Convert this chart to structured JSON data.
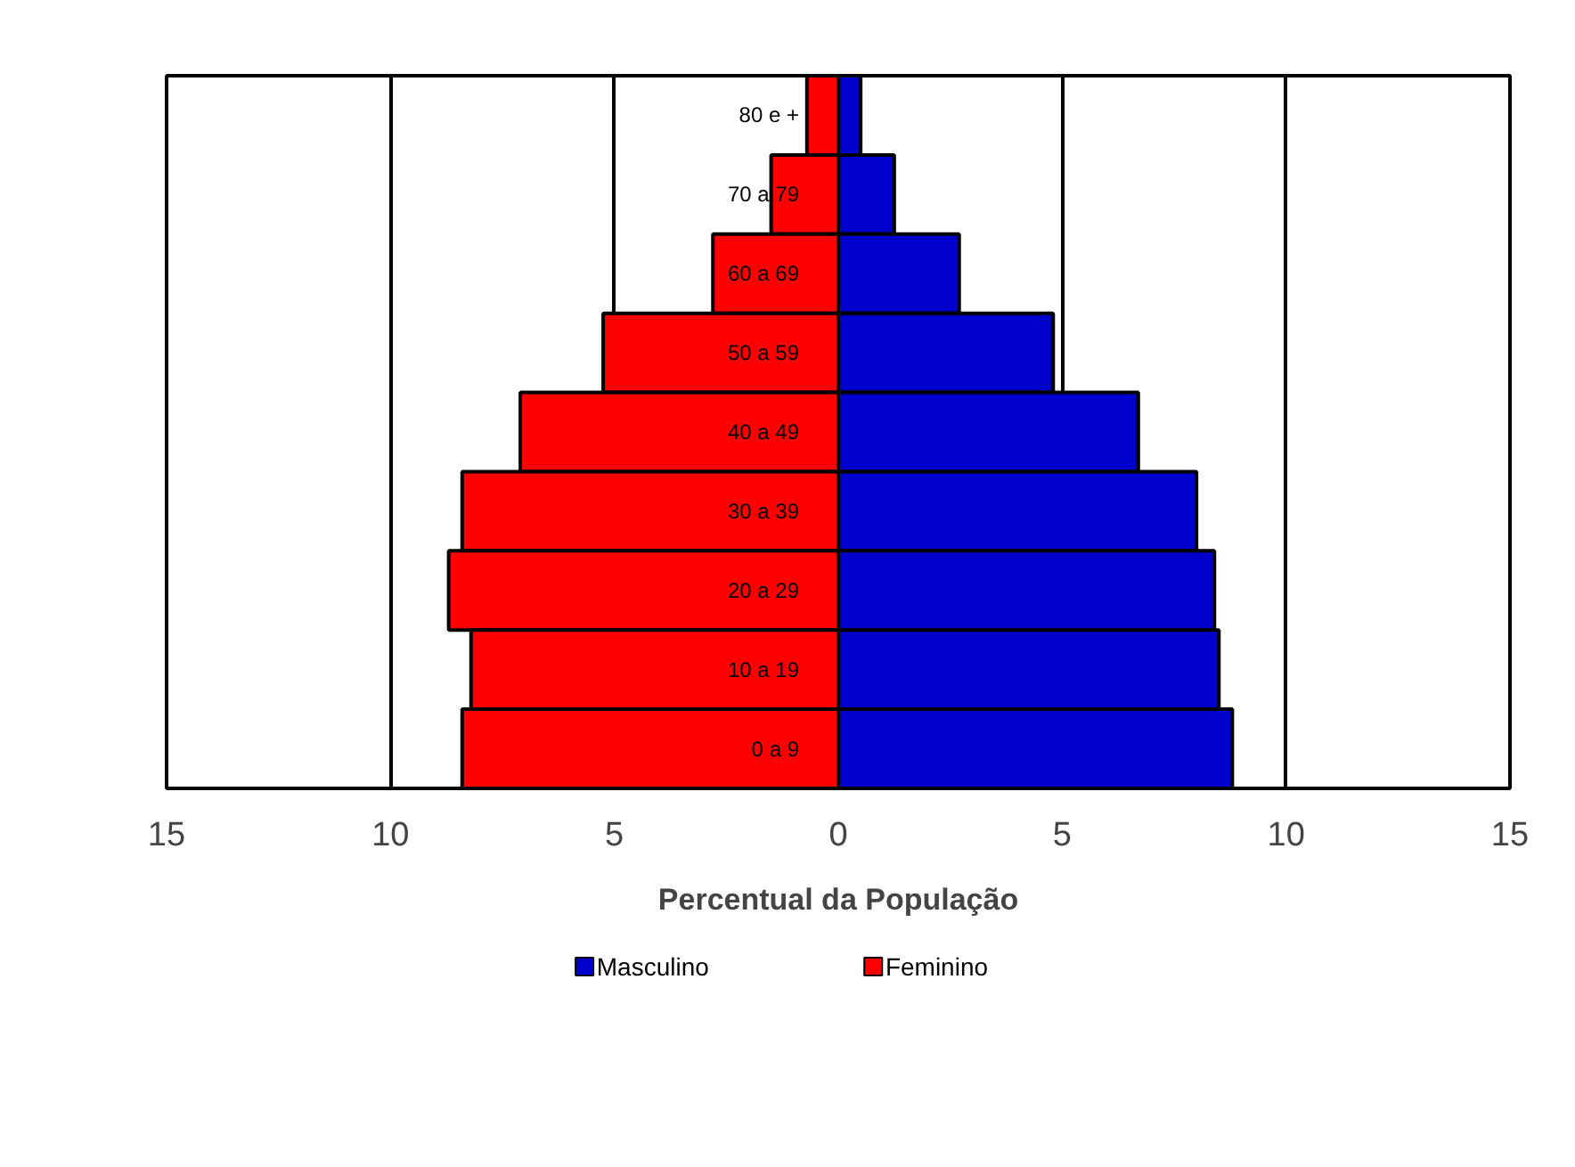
{
  "chart_data": {
    "type": "bar",
    "orientation": "horizontal",
    "xlabel": "Percentual da População",
    "categories": [
      "80 e +",
      "70 a 79",
      "60 a 69",
      "50 a 59",
      "40 a 49",
      "30 a 39",
      "20 a 29",
      "10 a 19",
      "0 a 9"
    ],
    "series": [
      {
        "name": "Masculino",
        "color": "#0000cc",
        "values": [
          0.5,
          1.25,
          2.7,
          4.8,
          6.7,
          8.0,
          8.4,
          8.5,
          8.8
        ]
      },
      {
        "name": "Feminino",
        "color": "#ff0000",
        "values": [
          -0.7,
          -1.5,
          -2.8,
          -5.25,
          -7.1,
          -8.4,
          -8.7,
          -8.2,
          -8.4
        ]
      }
    ],
    "xlim": [
      -15,
      15
    ],
    "xticks": [
      {
        "value": -15,
        "label": "15"
      },
      {
        "value": -10,
        "label": "10"
      },
      {
        "value": -5,
        "label": "5"
      },
      0,
      5,
      10,
      15
    ],
    "stacked": true,
    "grid": "x",
    "legend": "bottom"
  }
}
